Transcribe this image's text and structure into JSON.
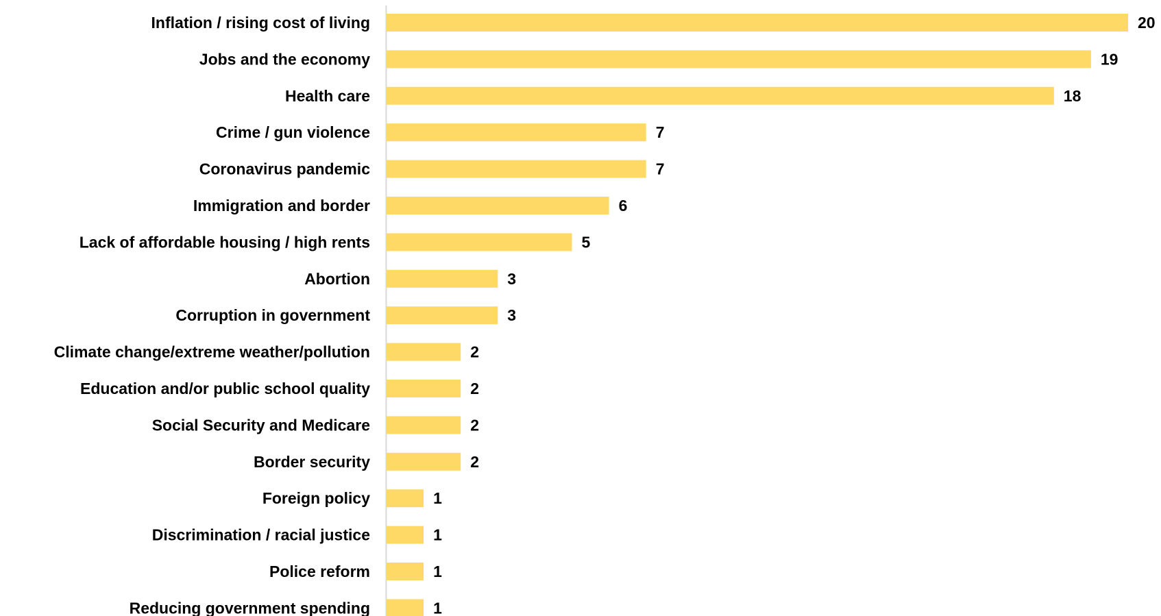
{
  "chart_data": {
    "type": "bar",
    "orientation": "horizontal",
    "categories": [
      "Inflation / rising cost of living",
      "Jobs and the economy",
      "Health care",
      "Crime / gun violence",
      "Coronavirus pandemic",
      "Immigration and border",
      "Lack of affordable housing / high rents",
      "Abortion",
      "Corruption in government",
      "Climate change/extreme weather/pollution",
      "Education and/or public school quality",
      "Social Security and Medicare",
      "Border security",
      "Foreign policy",
      "Discrimination / racial justice",
      "Police reform",
      "Reducing government spending"
    ],
    "values": [
      20,
      19,
      18,
      7,
      7,
      6,
      5,
      3,
      3,
      2,
      2,
      2,
      2,
      1,
      1,
      1,
      1
    ],
    "value_labels": [
      "20",
      "19",
      "18",
      "7",
      "7",
      "6",
      "5",
      "3",
      "3",
      "2",
      "2",
      "2",
      "2",
      "1",
      "1",
      "1",
      "1"
    ],
    "title": "",
    "xlabel": "",
    "ylabel": "",
    "xlim": [
      0,
      20
    ],
    "grid": false,
    "legend": "none",
    "colors": {
      "bar": "#FFD966",
      "axis": "#D9D9D9",
      "text": "#000000"
    }
  }
}
